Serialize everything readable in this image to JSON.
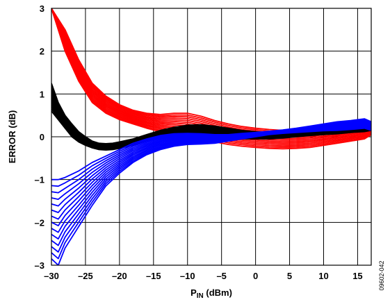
{
  "chart_data": {
    "type": "line",
    "title": "",
    "xlabel": {
      "main": "P",
      "sub": "IN",
      "unit": " (dBm)"
    },
    "ylabel": "ERROR (dB)",
    "xlim": [
      -30,
      17
    ],
    "ylim": [
      -3,
      3
    ],
    "xticks": [
      -30,
      -25,
      -20,
      -15,
      -10,
      -5,
      0,
      5,
      10,
      15
    ],
    "yticks": [
      -3,
      -2,
      -1,
      0,
      1,
      2,
      3
    ],
    "xtick_labels": [
      "–30",
      "–25",
      "–20",
      "–15",
      "–10",
      "–5",
      "0",
      "5",
      "10",
      "15"
    ],
    "ytick_labels": [
      "–3",
      "–2",
      "–1",
      "0",
      "1",
      "2",
      "3"
    ],
    "grid": true,
    "figure_id": "09602-042",
    "series": [
      {
        "color": "#ff0000",
        "curve_count": 14,
        "x": [
          -30,
          -28,
          -26,
          -24,
          -22,
          -20,
          -18,
          -16,
          -14,
          -12,
          -10,
          -8,
          -6,
          -4,
          -2,
          0,
          2,
          4,
          6,
          8,
          10,
          12,
          14,
          16,
          17
        ],
        "y_upper": [
          3.0,
          2.5,
          1.8,
          1.25,
          0.95,
          0.75,
          0.62,
          0.55,
          0.52,
          0.55,
          0.55,
          0.48,
          0.38,
          0.3,
          0.24,
          0.2,
          0.17,
          0.15,
          0.15,
          0.17,
          0.2,
          0.22,
          0.25,
          0.27,
          0.3
        ],
        "y_lower": [
          3.0,
          2.0,
          1.3,
          0.8,
          0.55,
          0.4,
          0.3,
          0.2,
          0.12,
          0.05,
          0.0,
          -0.05,
          -0.12,
          -0.18,
          -0.22,
          -0.25,
          -0.27,
          -0.28,
          -0.27,
          -0.25,
          -0.2,
          -0.15,
          -0.1,
          -0.05,
          0.05
        ]
      },
      {
        "color": "#000000",
        "curve_count": 14,
        "x": [
          -30,
          -29,
          -28,
          -27,
          -26,
          -25,
          -24,
          -23,
          -22,
          -21,
          -20,
          -18,
          -16,
          -14,
          -12,
          -10,
          -8,
          -6,
          -4,
          -2,
          0,
          2,
          4,
          6,
          8,
          10,
          12,
          14,
          16,
          17
        ],
        "y_upper": [
          1.25,
          0.8,
          0.5,
          0.3,
          0.12,
          0.0,
          -0.1,
          -0.15,
          -0.16,
          -0.15,
          -0.12,
          -0.05,
          0.05,
          0.15,
          0.22,
          0.27,
          0.28,
          0.25,
          0.2,
          0.15,
          0.12,
          0.1,
          0.1,
          0.12,
          0.15,
          0.18,
          0.22,
          0.25,
          0.28,
          0.3
        ],
        "y_lower": [
          0.6,
          0.4,
          0.2,
          0.0,
          -0.12,
          -0.2,
          -0.26,
          -0.3,
          -0.31,
          -0.3,
          -0.27,
          -0.2,
          -0.1,
          0.0,
          0.05,
          0.08,
          0.05,
          0.0,
          -0.03,
          -0.05,
          -0.05,
          -0.05,
          -0.03,
          0.0,
          0.03,
          0.05,
          0.07,
          0.1,
          0.12,
          0.15
        ]
      },
      {
        "color": "#0000ff",
        "curve_count": 14,
        "x": [
          -30,
          -29,
          -28,
          -26,
          -24,
          -22,
          -20,
          -18,
          -16,
          -14,
          -12,
          -10,
          -8,
          -6,
          -4,
          -2,
          0,
          2,
          4,
          6,
          8,
          10,
          12,
          14,
          16,
          17
        ],
        "y_upper": [
          -1.0,
          -1.0,
          -0.95,
          -0.8,
          -0.6,
          -0.45,
          -0.3,
          -0.15,
          -0.05,
          0.03,
          0.07,
          0.08,
          0.07,
          0.05,
          0.05,
          0.08,
          0.1,
          0.13,
          0.16,
          0.2,
          0.25,
          0.3,
          0.35,
          0.38,
          0.42,
          0.35
        ],
        "y_lower": [
          -2.85,
          -3.0,
          -2.6,
          -2.1,
          -1.6,
          -1.15,
          -0.85,
          -0.6,
          -0.42,
          -0.3,
          -0.22,
          -0.18,
          -0.17,
          -0.15,
          -0.1,
          -0.05,
          0.0,
          0.05,
          0.08,
          0.1,
          0.12,
          0.14,
          0.15,
          0.17,
          0.2,
          0.15
        ]
      }
    ]
  }
}
